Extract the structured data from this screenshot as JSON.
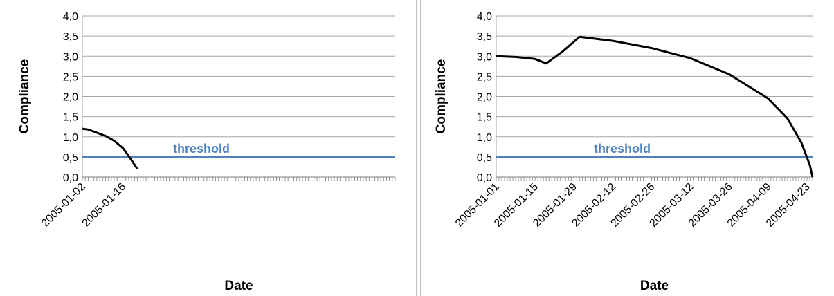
{
  "chart_data": [
    {
      "type": "line",
      "xlabel": "Date",
      "ylabel": "Compliance",
      "ylim": [
        0,
        4
      ],
      "yticks": [
        "0,0",
        "0,5",
        "1,0",
        "1,5",
        "2,0",
        "2,5",
        "3,0",
        "3,5",
        "4,0"
      ],
      "xlim": [
        "2005-01-02",
        "2005-04-20"
      ],
      "xtick_labels": [
        "2005-01-02",
        "2005-01-16"
      ],
      "grid": true,
      "series": [
        {
          "color": "#000000",
          "x": [
            "2005-01-02",
            "2005-01-04",
            "2005-01-07",
            "2005-01-10",
            "2005-01-13",
            "2005-01-16",
            "2005-01-18",
            "2005-01-21"
          ],
          "y": [
            1.2,
            1.18,
            1.1,
            1.02,
            0.9,
            0.72,
            0.52,
            0.2
          ]
        }
      ],
      "reference_line": {
        "label": "threshold",
        "value": 0.5,
        "color": "#4f81bd"
      }
    },
    {
      "type": "line",
      "xlabel": "Date",
      "ylabel": "Compliance",
      "ylim": [
        0,
        4
      ],
      "yticks": [
        "0,0",
        "0,5",
        "1,0",
        "1,5",
        "2,0",
        "2,5",
        "3,0",
        "3,5",
        "4,0"
      ],
      "xlim": [
        "2005-01-01",
        "2005-04-25"
      ],
      "xtick_labels": [
        "2005-01-01",
        "2005-01-15",
        "2005-01-29",
        "2005-02-12",
        "2005-02-26",
        "2005-03-12",
        "2005-03-26",
        "2005-04-09",
        "2005-04-23"
      ],
      "grid": true,
      "series": [
        {
          "color": "#000000",
          "x": [
            "2005-01-01",
            "2005-01-08",
            "2005-01-15",
            "2005-01-19",
            "2005-01-25",
            "2005-01-31",
            "2005-02-12",
            "2005-02-26",
            "2005-03-12",
            "2005-03-26",
            "2005-04-09",
            "2005-04-16",
            "2005-04-21",
            "2005-04-24",
            "2005-04-25"
          ],
          "y": [
            3.0,
            2.98,
            2.93,
            2.82,
            3.12,
            3.48,
            3.38,
            3.2,
            2.95,
            2.55,
            1.95,
            1.45,
            0.85,
            0.3,
            0.0
          ]
        }
      ],
      "reference_line": {
        "label": "threshold",
        "value": 0.5,
        "color": "#4f81bd"
      }
    }
  ]
}
